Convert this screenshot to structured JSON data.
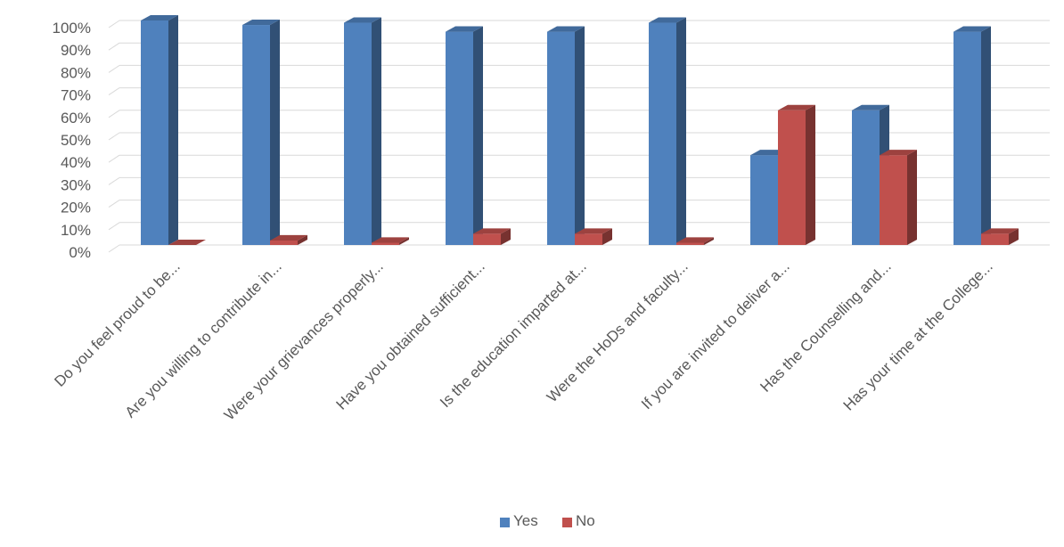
{
  "chart_data": {
    "type": "bar",
    "title": "",
    "xlabel": "",
    "ylabel": "",
    "ylim": [
      0,
      100
    ],
    "yticks": [
      "0%",
      "10%",
      "20%",
      "30%",
      "40%",
      "50%",
      "60%",
      "70%",
      "80%",
      "90%",
      "100%"
    ],
    "grid": true,
    "legend_position": "bottom-center",
    "style": "3d-clustered-column",
    "categories": [
      "Do you feel proud to be...",
      "Are you willing to contribute in...",
      "Were your grievances properly...",
      "Have you obtained sufficient...",
      "Is the education imparted at...",
      "Were the HoDs and faculty...",
      "If you are invited to deliver a...",
      "Has the Counselling and...",
      "Has your time at the College..."
    ],
    "series": [
      {
        "name": "Yes",
        "color": "#4F81BD",
        "values": [
          100,
          98,
          99,
          95,
          95,
          99,
          40,
          60,
          95
        ]
      },
      {
        "name": "No",
        "color": "#C0504D",
        "values": [
          0,
          2,
          1,
          5,
          5,
          1,
          60,
          40,
          5
        ]
      }
    ]
  }
}
